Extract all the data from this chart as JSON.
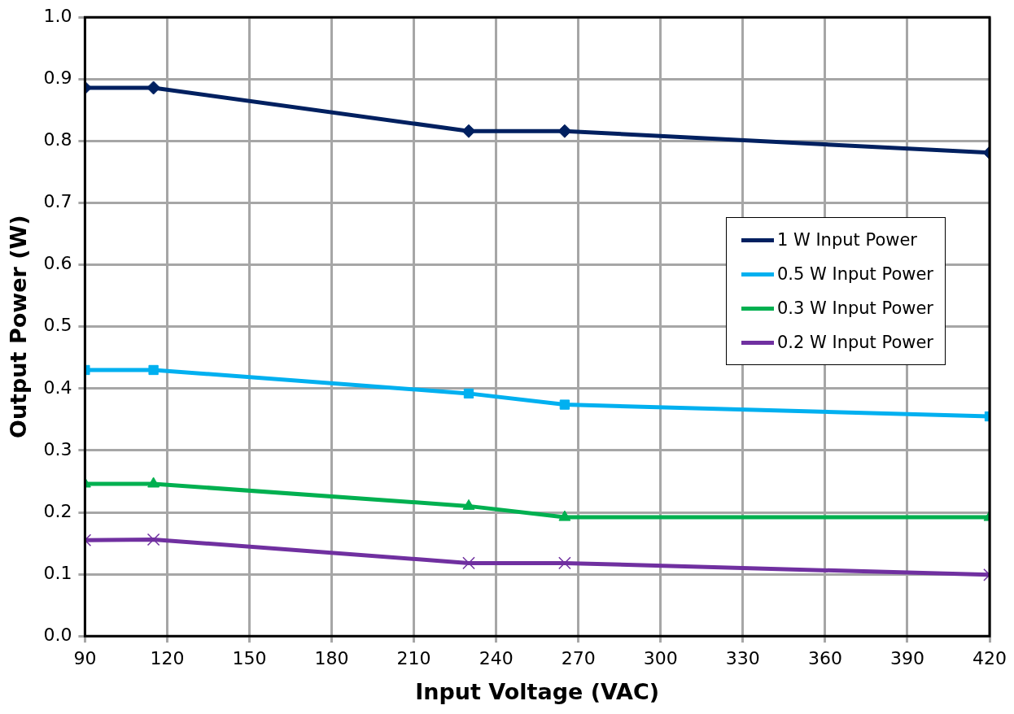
{
  "chart_data": {
    "type": "line",
    "xlabel": "Input Voltage (VAC)",
    "ylabel": "Output Power (W)",
    "x": [
      90,
      115,
      230,
      265,
      420
    ],
    "series": [
      {
        "name": "1 W Input Power",
        "color": "#002060",
        "marker": "diamond",
        "values": [
          0.886,
          0.886,
          0.816,
          0.816,
          0.781
        ]
      },
      {
        "name": "0.5 W Input Power",
        "color": "#00b0f0",
        "marker": "square",
        "values": [
          0.43,
          0.43,
          0.392,
          0.374,
          0.355
        ]
      },
      {
        "name": "0.3 W Input Power",
        "color": "#00b050",
        "marker": "triangle",
        "values": [
          0.246,
          0.246,
          0.21,
          0.192,
          0.192
        ]
      },
      {
        "name": "0.2 W Input Power",
        "color": "#7030a0",
        "marker": "cross",
        "values": [
          0.155,
          0.156,
          0.118,
          0.118,
          0.099
        ]
      }
    ],
    "xlim": [
      90,
      420
    ],
    "xticks": [
      90,
      120,
      150,
      180,
      210,
      240,
      270,
      300,
      330,
      360,
      390,
      420
    ],
    "ylim": [
      0,
      1
    ],
    "yticks": [
      {
        "value": 0,
        "label": "0.0"
      },
      {
        "value": 0.1,
        "label": "0.1"
      },
      {
        "value": 0.2,
        "label": "0.2"
      },
      {
        "value": 0.3,
        "label": "0.3"
      },
      {
        "value": 0.4,
        "label": "0.4"
      },
      {
        "value": 0.5,
        "label": "0.5"
      },
      {
        "value": 0.6,
        "label": "0.6"
      },
      {
        "value": 0.7,
        "label": "0.7"
      },
      {
        "value": 0.8,
        "label": "0.8"
      },
      {
        "value": 0.9,
        "label": "0.9"
      },
      {
        "value": 1,
        "label": "1.0"
      }
    ],
    "grid": true,
    "legend": "right",
    "line_style": "solid"
  }
}
